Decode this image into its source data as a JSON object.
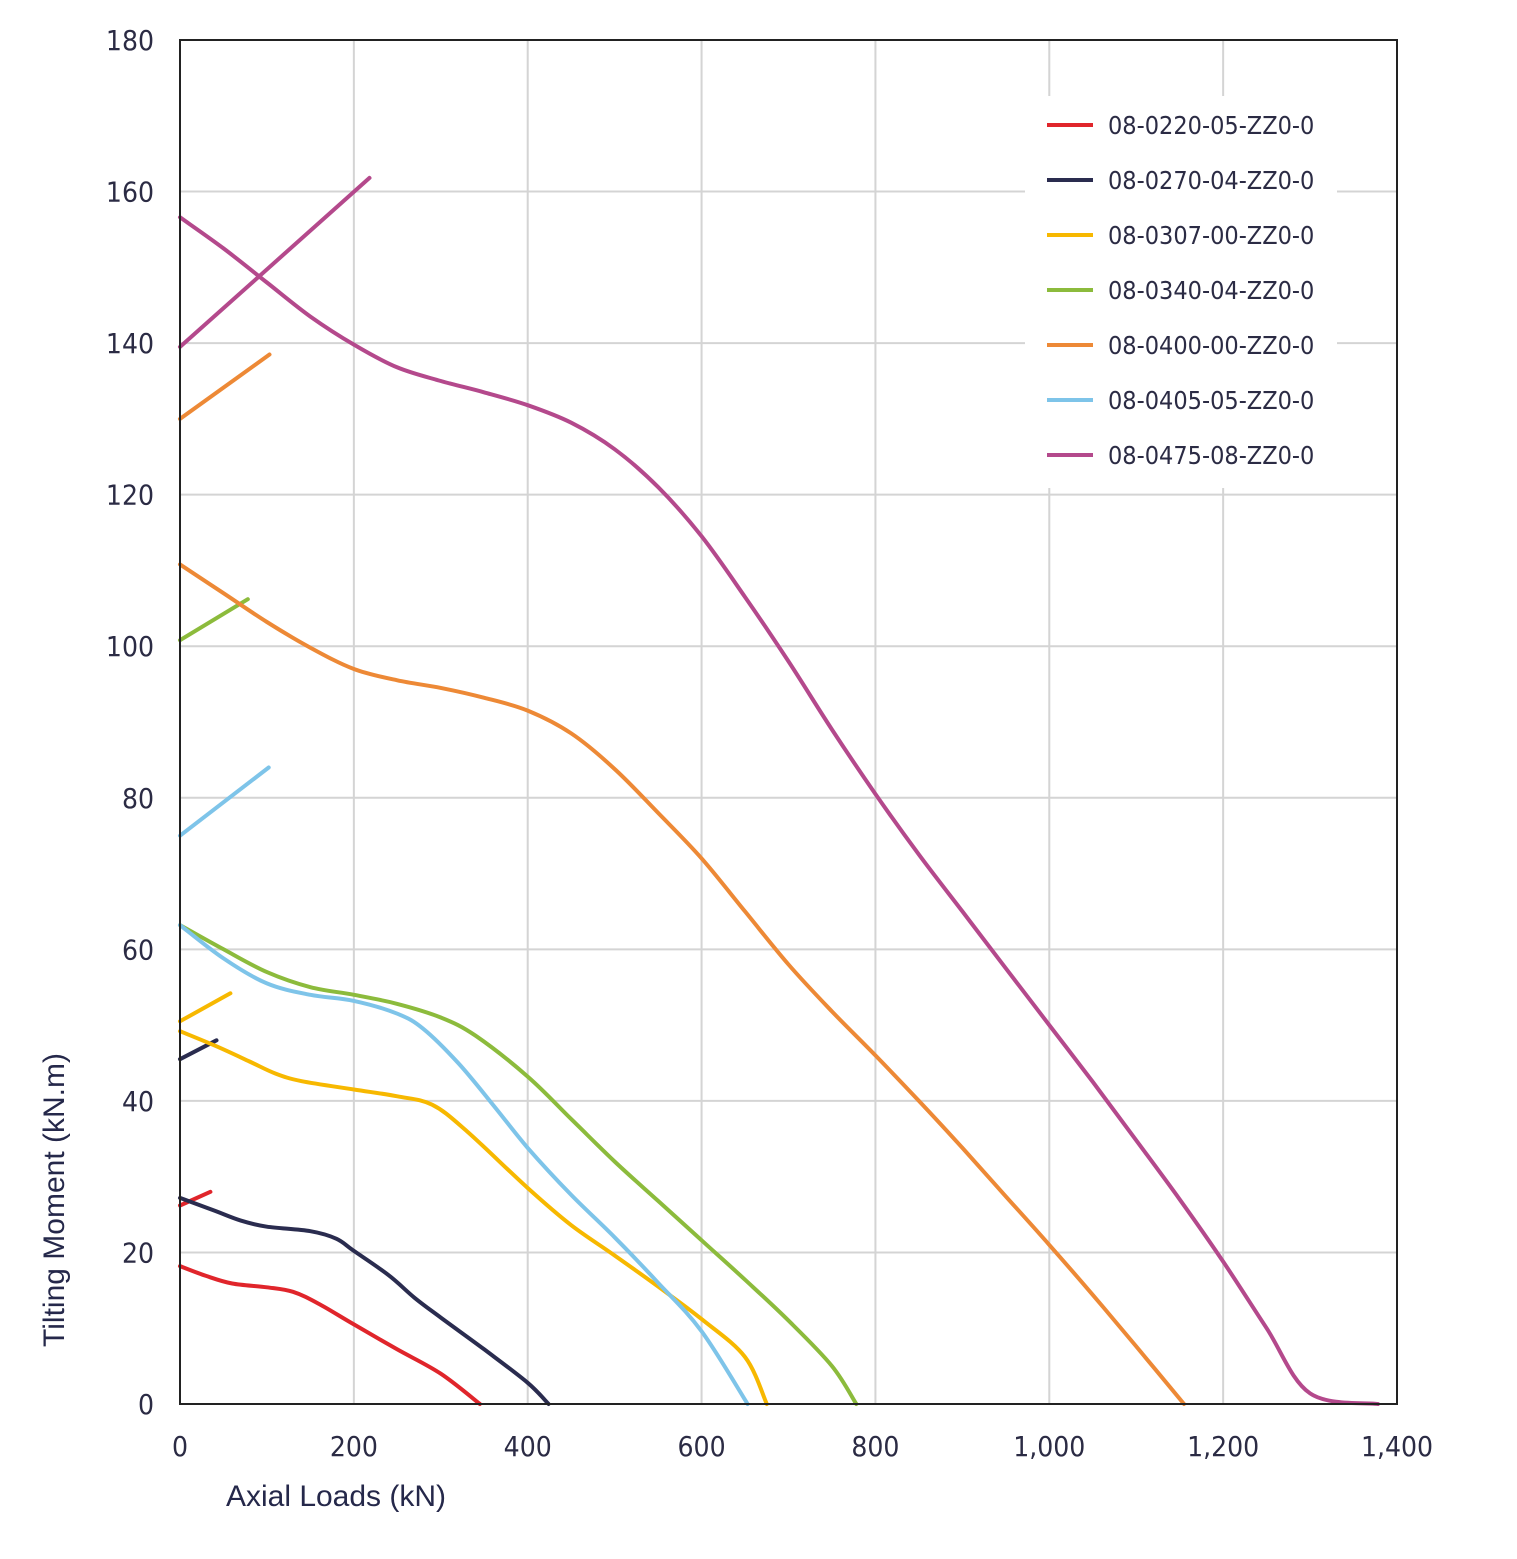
{
  "chart_data": {
    "type": "line",
    "xlabel": "Axial Loads (kN)",
    "ylabel": "Tilting Moment (kN.m)",
    "xlim": [
      0,
      1400
    ],
    "ylim": [
      0,
      180
    ],
    "x_ticks": [
      {
        "value": 0,
        "label": "0"
      },
      {
        "value": 200,
        "label": "200"
      },
      {
        "value": 400,
        "label": "400"
      },
      {
        "value": 600,
        "label": "600"
      },
      {
        "value": 800,
        "label": "800"
      },
      {
        "value": 1000,
        "label": "1,000"
      },
      {
        "value": 1200,
        "label": "1,200"
      },
      {
        "value": 1400,
        "label": "1,400"
      }
    ],
    "y_ticks": [
      {
        "value": 0,
        "label": "0"
      },
      {
        "value": 20,
        "label": "20"
      },
      {
        "value": 40,
        "label": "40"
      },
      {
        "value": 60,
        "label": "60"
      },
      {
        "value": 80,
        "label": "80"
      },
      {
        "value": 100,
        "label": "100"
      },
      {
        "value": 120,
        "label": "120"
      },
      {
        "value": 140,
        "label": "140"
      },
      {
        "value": 160,
        "label": "160"
      },
      {
        "value": 180,
        "label": "180"
      }
    ],
    "grid": true,
    "legend_position": "top-right",
    "series": [
      {
        "name": "08-0220-05-ZZ0-0",
        "color": "#e0252b",
        "curves": [
          [
            [
              0,
              18.2
            ],
            [
              30,
              16.9
            ],
            [
              60,
              15.9
            ],
            [
              100,
              15.4
            ],
            [
              130,
              14.8
            ],
            [
              160,
              13.2
            ],
            [
              200,
              10.5
            ],
            [
              250,
              7.2
            ],
            [
              300,
              4.0
            ],
            [
              345,
              0
            ]
          ],
          [
            [
              0,
              26.2
            ],
            [
              35,
              28.0
            ]
          ]
        ]
      },
      {
        "name": "08-0270-04-ZZ0-0",
        "color": "#2a2c4f",
        "curves": [
          [
            [
              0,
              27.2
            ],
            [
              40,
              25.5
            ],
            [
              70,
              24.2
            ],
            [
              100,
              23.4
            ],
            [
              150,
              22.8
            ],
            [
              180,
              21.8
            ],
            [
              200,
              20.2
            ],
            [
              240,
              17.0
            ],
            [
              270,
              14.0
            ],
            [
              300,
              11.4
            ],
            [
              350,
              7.2
            ],
            [
              400,
              2.8
            ],
            [
              424,
              0
            ]
          ],
          [
            [
              0,
              45.5
            ],
            [
              42,
              48.0
            ]
          ]
        ]
      },
      {
        "name": "08-0307-00-ZZ0-0",
        "color": "#f7b800",
        "curves": [
          [
            [
              0,
              49.2
            ],
            [
              40,
              47.3
            ],
            [
              80,
              45.2
            ],
            [
              110,
              43.6
            ],
            [
              140,
              42.6
            ],
            [
              200,
              41.5
            ],
            [
              250,
              40.6
            ],
            [
              290,
              39.5
            ],
            [
              330,
              36.0
            ],
            [
              400,
              28.5
            ],
            [
              450,
              23.6
            ],
            [
              500,
              19.6
            ],
            [
              550,
              15.5
            ],
            [
              600,
              11.2
            ],
            [
              650,
              6.2
            ],
            [
              675,
              0
            ]
          ],
          [
            [
              0,
              50.5
            ],
            [
              58,
              54.2
            ]
          ]
        ]
      },
      {
        "name": "08-0340-04-ZZ0-0",
        "color": "#8cbb3c",
        "curves": [
          [
            [
              0,
              63.2
            ],
            [
              50,
              60.0
            ],
            [
              100,
              57.0
            ],
            [
              150,
              55.0
            ],
            [
              200,
              54.0
            ],
            [
              250,
              52.8
            ],
            [
              300,
              51.0
            ],
            [
              340,
              48.6
            ],
            [
              400,
              43.2
            ],
            [
              450,
              37.6
            ],
            [
              500,
              32.0
            ],
            [
              550,
              26.8
            ],
            [
              600,
              21.6
            ],
            [
              650,
              16.4
            ],
            [
              700,
              11.0
            ],
            [
              750,
              5.0
            ],
            [
              778,
              0
            ]
          ],
          [
            [
              0,
              100.8
            ],
            [
              78,
              106.2
            ]
          ]
        ]
      },
      {
        "name": "08-0400-00-ZZ0-0",
        "color": "#ed8936",
        "curves": [
          [
            [
              0,
              110.8
            ],
            [
              50,
              107.0
            ],
            [
              100,
              103.2
            ],
            [
              150,
              99.8
            ],
            [
              200,
              97.0
            ],
            [
              250,
              95.5
            ],
            [
              300,
              94.5
            ],
            [
              350,
              93.2
            ],
            [
              400,
              91.5
            ],
            [
              450,
              88.5
            ],
            [
              500,
              83.8
            ],
            [
              550,
              78.0
            ],
            [
              600,
              72.0
            ],
            [
              650,
              65.0
            ],
            [
              700,
              58.0
            ],
            [
              750,
              51.8
            ],
            [
              800,
              46.0
            ],
            [
              850,
              40.0
            ],
            [
              900,
              33.8
            ],
            [
              950,
              27.4
            ],
            [
              1000,
              21.0
            ],
            [
              1050,
              14.4
            ],
            [
              1100,
              7.6
            ],
            [
              1155,
              0
            ]
          ],
          [
            [
              0,
              130.0
            ],
            [
              103,
              138.5
            ]
          ]
        ]
      },
      {
        "name": "08-0405-05-ZZ0-0",
        "color": "#7ec4e9",
        "curves": [
          [
            [
              0,
              63.2
            ],
            [
              50,
              58.8
            ],
            [
              100,
              55.5
            ],
            [
              150,
              54.0
            ],
            [
              200,
              53.2
            ],
            [
              250,
              51.5
            ],
            [
              280,
              49.5
            ],
            [
              320,
              45.0
            ],
            [
              360,
              39.5
            ],
            [
              400,
              33.8
            ],
            [
              450,
              27.6
            ],
            [
              500,
              22.0
            ],
            [
              550,
              16.0
            ],
            [
              600,
              9.6
            ],
            [
              653,
              0
            ]
          ],
          [
            [
              0,
              75.0
            ],
            [
              102,
              84.0
            ]
          ]
        ]
      },
      {
        "name": "08-0475-08-ZZ0-0",
        "color": "#b4498c",
        "curves": [
          [
            [
              0,
              156.6
            ],
            [
              50,
              152.5
            ],
            [
              100,
              148.0
            ],
            [
              150,
              143.5
            ],
            [
              200,
              139.8
            ],
            [
              250,
              136.8
            ],
            [
              300,
              135.0
            ],
            [
              350,
              133.5
            ],
            [
              400,
              131.8
            ],
            [
              450,
              129.5
            ],
            [
              500,
              126.0
            ],
            [
              550,
              121.0
            ],
            [
              600,
              114.5
            ],
            [
              650,
              106.5
            ],
            [
              700,
              98.0
            ],
            [
              750,
              89.0
            ],
            [
              800,
              80.5
            ],
            [
              850,
              72.5
            ],
            [
              900,
              65.0
            ],
            [
              950,
              57.5
            ],
            [
              1000,
              50.0
            ],
            [
              1050,
              42.5
            ],
            [
              1100,
              34.8
            ],
            [
              1150,
              27.0
            ],
            [
              1200,
              18.8
            ],
            [
              1250,
              10.0
            ],
            [
              1300,
              1.4
            ],
            [
              1378,
              0
            ]
          ],
          [
            [
              0,
              139.5
            ],
            [
              218,
              161.8
            ]
          ]
        ]
      }
    ]
  }
}
